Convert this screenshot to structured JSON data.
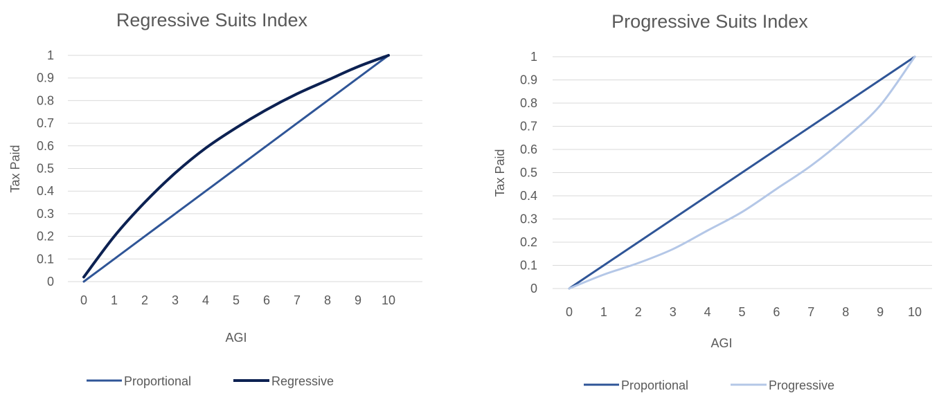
{
  "chart_data": [
    {
      "type": "line",
      "title": "Regressive Suits Index",
      "xlabel": "AGI",
      "ylabel": "Tax Paid",
      "x": [
        0,
        1,
        2,
        3,
        4,
        5,
        6,
        7,
        8,
        9,
        10
      ],
      "xlim": [
        0,
        10
      ],
      "ylim": [
        0,
        1
      ],
      "x_ticks": [
        "0",
        "1",
        "2",
        "3",
        "4",
        "5",
        "6",
        "7",
        "8",
        "9",
        "10"
      ],
      "y_ticks": [
        "0",
        "0.1",
        "0.2",
        "0.3",
        "0.4",
        "0.5",
        "0.6",
        "0.7",
        "0.8",
        "0.9",
        "1"
      ],
      "grid": true,
      "legend_position": "bottom",
      "series": [
        {
          "name": "Proportional",
          "color": "#2f5597",
          "values": [
            0,
            0.1,
            0.2,
            0.3,
            0.4,
            0.5,
            0.6,
            0.7,
            0.8,
            0.9,
            1.0
          ]
        },
        {
          "name": "Regressive",
          "color": "#0c2152",
          "values": [
            0.02,
            0.2,
            0.35,
            0.48,
            0.59,
            0.68,
            0.76,
            0.83,
            0.89,
            0.95,
            1.0
          ]
        }
      ]
    },
    {
      "type": "line",
      "title": "Progressive Suits Index",
      "xlabel": "AGI",
      "ylabel": "Tax Paid",
      "x": [
        0,
        1,
        2,
        3,
        4,
        5,
        6,
        7,
        8,
        9,
        10
      ],
      "xlim": [
        0,
        10
      ],
      "ylim": [
        0,
        1
      ],
      "x_ticks": [
        "0",
        "1",
        "2",
        "3",
        "4",
        "5",
        "6",
        "7",
        "8",
        "9",
        "10"
      ],
      "y_ticks": [
        "0",
        "0.1",
        "0.2",
        "0.3",
        "0.4",
        "0.5",
        "0.6",
        "0.7",
        "0.8",
        "0.9",
        "1"
      ],
      "grid": true,
      "legend_position": "bottom",
      "series": [
        {
          "name": "Proportional",
          "color": "#2f5597",
          "values": [
            0,
            0.1,
            0.2,
            0.3,
            0.4,
            0.5,
            0.6,
            0.7,
            0.8,
            0.9,
            1.0
          ]
        },
        {
          "name": "Progressive",
          "color": "#b4c7e7",
          "values": [
            0,
            0.06,
            0.11,
            0.17,
            0.25,
            0.33,
            0.43,
            0.53,
            0.65,
            0.79,
            1.0
          ]
        }
      ]
    }
  ]
}
